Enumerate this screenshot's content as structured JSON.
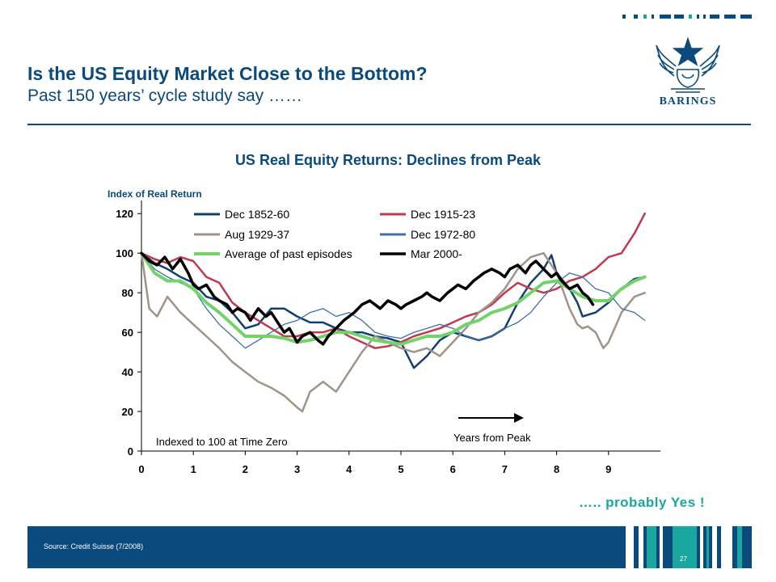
{
  "header": {
    "title": "Is the US Equity Market Close to the Bottom?",
    "subtitle": "Past 150 years’ cycle study say ……",
    "logo_text": "BARINGS"
  },
  "conclusion": "….. probably Yes !",
  "footer": {
    "source": "Source:  Credit Suisse (7/2008)",
    "page_number": "27"
  },
  "colors": {
    "brand": "#0a4a7c",
    "accent": "#1aa7a0",
    "dec_1852_60": "#123f73",
    "dec_1915_23": "#c0394f",
    "aug_1929_37": "#a09486",
    "dec_1972_80": "#3f6fa7",
    "average": "#74d26a",
    "mar_2000": "#000000"
  },
  "chart_data": {
    "type": "line",
    "title": "US Real Equity Returns: Declines from Peak",
    "ylabel": "Index of Real Return",
    "xlabel": "",
    "xlim": [
      0,
      10
    ],
    "ylim": [
      0,
      125
    ],
    "xticks": [
      0,
      1,
      2,
      3,
      4,
      5,
      6,
      7,
      8,
      9
    ],
    "yticks": [
      0,
      20,
      40,
      60,
      80,
      100,
      120
    ],
    "grid": false,
    "legend_position": "top",
    "annotations": {
      "note": "Indexed to 100 at Time Zero",
      "arrow_label": "Years from Peak"
    },
    "series": [
      {
        "name": "Dec 1852-60",
        "color_key": "dec_1852_60",
        "width": 2.5,
        "legend_col": 0,
        "legend_row": 0,
        "points": [
          [
            0,
            100
          ],
          [
            0.25,
            95
          ],
          [
            0.5,
            92
          ],
          [
            0.75,
            88
          ],
          [
            1,
            85
          ],
          [
            1.25,
            78
          ],
          [
            1.5,
            76
          ],
          [
            1.75,
            70
          ],
          [
            2,
            62
          ],
          [
            2.25,
            64
          ],
          [
            2.5,
            72
          ],
          [
            2.75,
            72
          ],
          [
            3,
            68
          ],
          [
            3.25,
            65
          ],
          [
            3.5,
            65
          ],
          [
            3.75,
            62
          ],
          [
            4,
            60
          ],
          [
            4.25,
            60
          ],
          [
            4.5,
            58
          ],
          [
            4.75,
            57
          ],
          [
            5,
            55
          ],
          [
            5.25,
            42
          ],
          [
            5.5,
            48
          ],
          [
            5.75,
            56
          ],
          [
            6,
            60
          ],
          [
            6.25,
            58
          ],
          [
            6.5,
            56
          ],
          [
            6.75,
            58
          ],
          [
            7,
            62
          ],
          [
            7.25,
            75
          ],
          [
            7.5,
            85
          ],
          [
            7.75,
            92
          ],
          [
            7.9,
            99
          ],
          [
            8,
            90
          ],
          [
            8.25,
            82
          ],
          [
            8.4,
            75
          ],
          [
            8.5,
            68
          ],
          [
            8.75,
            70
          ],
          [
            9,
            75
          ],
          [
            9.25,
            82
          ],
          [
            9.5,
            87
          ],
          [
            9.7,
            88
          ]
        ]
      },
      {
        "name": "Dec 1915-23",
        "color_key": "dec_1915_23",
        "width": 2.5,
        "legend_col": 1,
        "legend_row": 0,
        "points": [
          [
            0,
            100
          ],
          [
            0.25,
            97
          ],
          [
            0.5,
            95
          ],
          [
            0.75,
            98
          ],
          [
            1,
            96
          ],
          [
            1.25,
            88
          ],
          [
            1.5,
            85
          ],
          [
            1.75,
            75
          ],
          [
            2,
            70
          ],
          [
            2.25,
            66
          ],
          [
            2.5,
            62
          ],
          [
            2.75,
            58
          ],
          [
            3,
            58
          ],
          [
            3.25,
            60
          ],
          [
            3.5,
            60
          ],
          [
            3.75,
            62
          ],
          [
            4,
            58
          ],
          [
            4.25,
            55
          ],
          [
            4.5,
            52
          ],
          [
            4.75,
            53
          ],
          [
            5,
            55
          ],
          [
            5.25,
            58
          ],
          [
            5.5,
            60
          ],
          [
            5.75,
            62
          ],
          [
            6,
            65
          ],
          [
            6.25,
            68
          ],
          [
            6.5,
            70
          ],
          [
            6.75,
            74
          ],
          [
            7,
            80
          ],
          [
            7.25,
            85
          ],
          [
            7.5,
            82
          ],
          [
            7.75,
            80
          ],
          [
            8,
            82
          ],
          [
            8.25,
            86
          ],
          [
            8.5,
            88
          ],
          [
            8.75,
            92
          ],
          [
            9,
            98
          ],
          [
            9.25,
            100
          ],
          [
            9.5,
            110
          ],
          [
            9.6,
            115
          ],
          [
            9.7,
            120
          ]
        ]
      },
      {
        "name": "Aug 1929-37",
        "color_key": "aug_1929_37",
        "width": 2.5,
        "legend_col": 0,
        "legend_row": 1,
        "points": [
          [
            0,
            100
          ],
          [
            0.15,
            72
          ],
          [
            0.3,
            68
          ],
          [
            0.5,
            78
          ],
          [
            0.75,
            70
          ],
          [
            1,
            64
          ],
          [
            1.25,
            58
          ],
          [
            1.5,
            52
          ],
          [
            1.75,
            45
          ],
          [
            2,
            40
          ],
          [
            2.25,
            35
          ],
          [
            2.5,
            32
          ],
          [
            2.75,
            28
          ],
          [
            3,
            22
          ],
          [
            3.1,
            20
          ],
          [
            3.25,
            30
          ],
          [
            3.5,
            35
          ],
          [
            3.75,
            30
          ],
          [
            4,
            40
          ],
          [
            4.25,
            50
          ],
          [
            4.5,
            58
          ],
          [
            4.75,
            55
          ],
          [
            5,
            52
          ],
          [
            5.25,
            50
          ],
          [
            5.5,
            52
          ],
          [
            5.75,
            48
          ],
          [
            6,
            55
          ],
          [
            6.25,
            62
          ],
          [
            6.5,
            70
          ],
          [
            6.75,
            75
          ],
          [
            7,
            82
          ],
          [
            7.25,
            92
          ],
          [
            7.5,
            98
          ],
          [
            7.75,
            100
          ],
          [
            8,
            90
          ],
          [
            8.25,
            72
          ],
          [
            8.4,
            64
          ],
          [
            8.5,
            62
          ],
          [
            8.6,
            63
          ],
          [
            8.75,
            60
          ],
          [
            8.9,
            52
          ],
          [
            9,
            55
          ],
          [
            9.25,
            70
          ],
          [
            9.5,
            78
          ],
          [
            9.7,
            80
          ]
        ]
      },
      {
        "name": "Dec 1972-80",
        "color_key": "dec_1972_80",
        "width": 1.3,
        "legend_col": 1,
        "legend_row": 1,
        "points": [
          [
            0,
            100
          ],
          [
            0.25,
            92
          ],
          [
            0.5,
            88
          ],
          [
            0.75,
            85
          ],
          [
            1,
            82
          ],
          [
            1.25,
            72
          ],
          [
            1.5,
            64
          ],
          [
            1.75,
            58
          ],
          [
            2,
            52
          ],
          [
            2.25,
            56
          ],
          [
            2.5,
            60
          ],
          [
            2.75,
            64
          ],
          [
            3,
            66
          ],
          [
            3.25,
            70
          ],
          [
            3.5,
            72
          ],
          [
            3.75,
            68
          ],
          [
            4,
            70
          ],
          [
            4.25,
            66
          ],
          [
            4.5,
            60
          ],
          [
            4.75,
            58
          ],
          [
            5,
            57
          ],
          [
            5.25,
            60
          ],
          [
            5.5,
            62
          ],
          [
            5.75,
            64
          ],
          [
            6,
            62
          ],
          [
            6.25,
            58
          ],
          [
            6.5,
            56
          ],
          [
            6.75,
            58
          ],
          [
            7,
            62
          ],
          [
            7.25,
            65
          ],
          [
            7.5,
            70
          ],
          [
            7.75,
            78
          ],
          [
            8,
            85
          ],
          [
            8.25,
            90
          ],
          [
            8.5,
            88
          ],
          [
            8.75,
            82
          ],
          [
            9,
            80
          ],
          [
            9.25,
            72
          ],
          [
            9.5,
            70
          ],
          [
            9.7,
            66
          ]
        ]
      },
      {
        "name": "Average of past episodes",
        "color_key": "average",
        "width": 4,
        "legend_col": 0,
        "legend_row": 2,
        "points": [
          [
            0,
            100
          ],
          [
            0.25,
            90
          ],
          [
            0.5,
            86
          ],
          [
            0.75,
            86
          ],
          [
            1,
            82
          ],
          [
            1.25,
            75
          ],
          [
            1.5,
            70
          ],
          [
            1.75,
            64
          ],
          [
            2,
            58
          ],
          [
            2.25,
            58
          ],
          [
            2.5,
            58
          ],
          [
            2.75,
            57
          ],
          [
            3,
            55
          ],
          [
            3.25,
            56
          ],
          [
            3.5,
            58
          ],
          [
            3.75,
            60
          ],
          [
            4,
            60
          ],
          [
            4.25,
            58
          ],
          [
            4.5,
            56
          ],
          [
            4.75,
            55
          ],
          [
            5,
            54
          ],
          [
            5.25,
            56
          ],
          [
            5.5,
            58
          ],
          [
            5.75,
            58
          ],
          [
            6,
            60
          ],
          [
            6.25,
            64
          ],
          [
            6.5,
            66
          ],
          [
            6.75,
            70
          ],
          [
            7,
            72
          ],
          [
            7.25,
            75
          ],
          [
            7.5,
            80
          ],
          [
            7.75,
            85
          ],
          [
            8,
            86
          ],
          [
            8.25,
            82
          ],
          [
            8.5,
            78
          ],
          [
            8.75,
            76
          ],
          [
            9,
            76
          ],
          [
            9.25,
            82
          ],
          [
            9.5,
            86
          ],
          [
            9.7,
            88
          ]
        ]
      },
      {
        "name": "Mar 2000-",
        "color_key": "mar_2000",
        "width": 3.5,
        "legend_col": 1,
        "legend_row": 2,
        "points": [
          [
            0,
            100
          ],
          [
            0.15,
            96
          ],
          [
            0.3,
            94
          ],
          [
            0.45,
            98
          ],
          [
            0.6,
            92
          ],
          [
            0.75,
            97
          ],
          [
            0.9,
            90
          ],
          [
            1,
            84
          ],
          [
            1.1,
            82
          ],
          [
            1.25,
            84
          ],
          [
            1.4,
            78
          ],
          [
            1.5,
            76
          ],
          [
            1.65,
            74
          ],
          [
            1.75,
            70
          ],
          [
            1.85,
            72
          ],
          [
            2,
            70
          ],
          [
            2.1,
            66
          ],
          [
            2.25,
            72
          ],
          [
            2.4,
            68
          ],
          [
            2.5,
            70
          ],
          [
            2.6,
            66
          ],
          [
            2.75,
            60
          ],
          [
            2.85,
            62
          ],
          [
            3,
            55
          ],
          [
            3.1,
            58
          ],
          [
            3.25,
            60
          ],
          [
            3.4,
            56
          ],
          [
            3.5,
            54
          ],
          [
            3.6,
            58
          ],
          [
            3.75,
            62
          ],
          [
            3.9,
            66
          ],
          [
            4,
            68
          ],
          [
            4.1,
            70
          ],
          [
            4.25,
            74
          ],
          [
            4.4,
            76
          ],
          [
            4.5,
            74
          ],
          [
            4.6,
            72
          ],
          [
            4.75,
            76
          ],
          [
            4.9,
            74
          ],
          [
            5,
            72
          ],
          [
            5.1,
            74
          ],
          [
            5.25,
            76
          ],
          [
            5.4,
            78
          ],
          [
            5.5,
            80
          ],
          [
            5.6,
            78
          ],
          [
            5.75,
            76
          ],
          [
            5.9,
            80
          ],
          [
            6,
            82
          ],
          [
            6.1,
            84
          ],
          [
            6.25,
            82
          ],
          [
            6.4,
            86
          ],
          [
            6.5,
            88
          ],
          [
            6.6,
            90
          ],
          [
            6.75,
            92
          ],
          [
            6.9,
            90
          ],
          [
            7,
            88
          ],
          [
            7.1,
            92
          ],
          [
            7.25,
            94
          ],
          [
            7.4,
            90
          ],
          [
            7.5,
            94
          ],
          [
            7.6,
            96
          ],
          [
            7.75,
            92
          ],
          [
            7.9,
            88
          ],
          [
            8,
            90
          ],
          [
            8.1,
            86
          ],
          [
            8.25,
            82
          ],
          [
            8.4,
            84
          ],
          [
            8.5,
            80
          ],
          [
            8.6,
            78
          ],
          [
            8.7,
            74
          ]
        ]
      }
    ]
  }
}
